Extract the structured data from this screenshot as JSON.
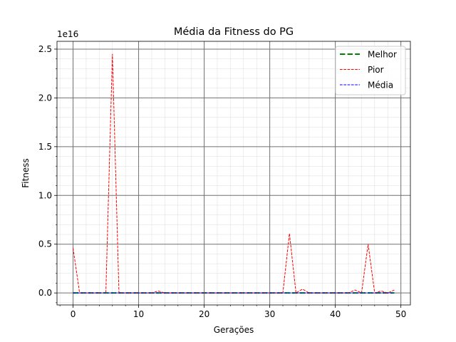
{
  "chart_data": {
    "type": "line",
    "title": "Média da Fitness do PG",
    "xlabel": "Gerações",
    "ylabel": "Fitness",
    "y_offset_text": "1e16",
    "y_scale_exponent": 16,
    "xlim": [
      -2.45,
      51.45
    ],
    "ylim": [
      -0.123,
      2.58
    ],
    "x_ticks": [
      0,
      10,
      20,
      30,
      40,
      50
    ],
    "y_ticks": [
      0.0,
      0.5,
      1.0,
      1.5,
      2.0,
      2.5
    ],
    "y_tick_labels": [
      "0.0",
      "0.5",
      "1.0",
      "1.5",
      "2.0",
      "2.5"
    ],
    "grid": true,
    "legend_position": "top-right",
    "x": [
      0,
      1,
      2,
      3,
      4,
      5,
      6,
      7,
      8,
      9,
      10,
      11,
      12,
      13,
      14,
      15,
      16,
      17,
      18,
      19,
      20,
      21,
      22,
      23,
      24,
      25,
      26,
      27,
      28,
      29,
      30,
      31,
      32,
      33,
      34,
      35,
      36,
      37,
      38,
      39,
      40,
      41,
      42,
      43,
      44,
      45,
      46,
      47,
      48,
      49
    ],
    "series": [
      {
        "name": "Melhor",
        "color": "#008000",
        "dash": "dashed-thick",
        "values": [
          0,
          0,
          0,
          0,
          0,
          0,
          0,
          0,
          0,
          0,
          0,
          0,
          0,
          0,
          0,
          0,
          0,
          0,
          0,
          0,
          0,
          0,
          0,
          0,
          0,
          0,
          0,
          0,
          0,
          0,
          0,
          0,
          0,
          0,
          0,
          0,
          0,
          0,
          0,
          0,
          0,
          0,
          0,
          0,
          0,
          0,
          0,
          0,
          0,
          0
        ]
      },
      {
        "name": "Pior",
        "color": "#ff0000",
        "dash": "dashed",
        "values": [
          0.46,
          0.0,
          0.0,
          0.0,
          0.0,
          0.0,
          2.45,
          0.0,
          0.0,
          0.0,
          0.0,
          0.0,
          0.0,
          0.02,
          0.0,
          0.0,
          0.0,
          0.0,
          0.0,
          0.0,
          0.0,
          0.0,
          0.0,
          0.0,
          0.0,
          0.0,
          0.0,
          0.0,
          0.0,
          0.0,
          0.0,
          0.0,
          0.0,
          0.61,
          0.0,
          0.04,
          0.0,
          0.0,
          0.0,
          0.0,
          0.0,
          0.0,
          0.0,
          0.03,
          0.0,
          0.5,
          0.0,
          0.02,
          0.0,
          0.03
        ]
      },
      {
        "name": "Média",
        "color": "#0000ff",
        "dash": "dashed",
        "values": [
          0,
          0,
          0,
          0,
          0,
          0,
          0,
          0,
          0,
          0,
          0,
          0,
          0,
          0,
          0,
          0,
          0,
          0,
          0,
          0,
          0,
          0,
          0,
          0,
          0,
          0,
          0,
          0,
          0,
          0,
          0,
          0,
          0,
          0,
          0,
          0,
          0,
          0,
          0,
          0,
          0,
          0,
          0,
          0,
          0,
          0,
          0,
          0,
          0,
          0
        ]
      }
    ]
  }
}
